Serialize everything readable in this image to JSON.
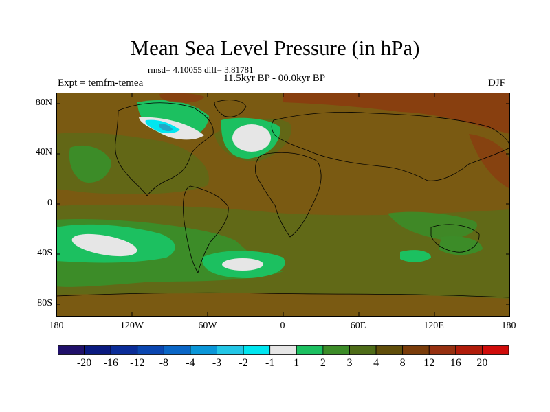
{
  "title": "Mean Sea Level Pressure (in hPa)",
  "stats": "rmsd= 4.10055  diff= 3.81781",
  "period": "11.5kyr BP - 00.0kyr BP",
  "experiment": "Expt = temfm-temea",
  "season": "DJF",
  "lat_labels": [
    "80N",
    "40N",
    "0",
    "40S",
    "80S"
  ],
  "lon_labels": [
    "180",
    "120W",
    "60W",
    "0",
    "60E",
    "120E",
    "180"
  ],
  "colorbar": {
    "colors": [
      "#20106a",
      "#0a1a80",
      "#0a2c98",
      "#0a46b0",
      "#0a66c6",
      "#0a96d8",
      "#22c6e6",
      "#00e6f0",
      "#e6e6e6",
      "#1cc060",
      "#3c8c28",
      "#4e6c18",
      "#604e0a",
      "#7a3c0a",
      "#963010",
      "#b01c0a",
      "#d00c0a"
    ],
    "labels": [
      "-20",
      "-16",
      "-12",
      "-8",
      "-4",
      "-3",
      "-2",
      "-1",
      "1",
      "2",
      "3",
      "4",
      "8",
      "12",
      "16",
      "20"
    ]
  },
  "palette": {
    "background": "#7a5a12",
    "bright_green": "#1cc060",
    "mid_green": "#3c8c28",
    "olive_green": "#4e6c18",
    "brown_red": "#8a3c10",
    "white": "#e6e6e6",
    "cyan": "#00e6f0",
    "teal": "#22a6c6"
  }
}
